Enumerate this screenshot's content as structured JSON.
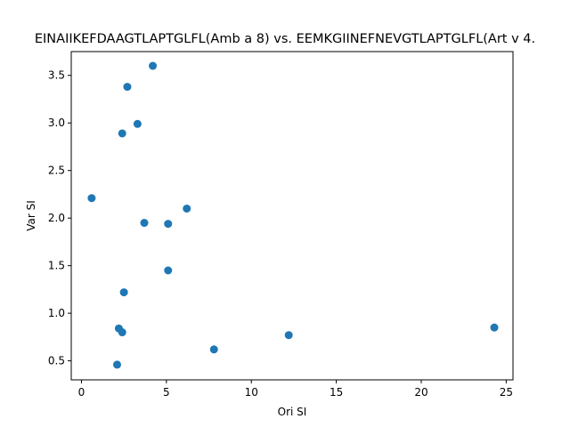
{
  "chart_data": {
    "type": "scatter",
    "title": "EINAIIKEFDAAGTLAPTGLFL(Amb a 8) vs. EEMKGIINEFNEVGTLAPTGLFL(Art v 4.",
    "xlabel": "Ori SI",
    "ylabel": "Var SI",
    "xlim": [
      -0.6,
      25.4
    ],
    "ylim": [
      0.3,
      3.75
    ],
    "xticks": [
      0,
      5,
      10,
      15,
      20,
      25
    ],
    "yticks": [
      0.5,
      1.0,
      1.5,
      2.0,
      2.5,
      3.0,
      3.5
    ],
    "xtick_labels": [
      "0",
      "5",
      "10",
      "15",
      "20",
      "25"
    ],
    "ytick_labels": [
      "0.5",
      "1.0",
      "1.5",
      "2.0",
      "2.5",
      "3.0",
      "3.5"
    ],
    "grid": false,
    "legend": "none",
    "marker_color": "#1f77b4",
    "points": [
      {
        "x": 0.6,
        "y": 2.21
      },
      {
        "x": 2.1,
        "y": 0.46
      },
      {
        "x": 2.2,
        "y": 0.84
      },
      {
        "x": 2.4,
        "y": 0.8
      },
      {
        "x": 2.4,
        "y": 2.89
      },
      {
        "x": 2.5,
        "y": 1.22
      },
      {
        "x": 2.7,
        "y": 3.38
      },
      {
        "x": 3.3,
        "y": 2.99
      },
      {
        "x": 3.7,
        "y": 1.95
      },
      {
        "x": 4.2,
        "y": 3.6
      },
      {
        "x": 5.1,
        "y": 1.94
      },
      {
        "x": 5.1,
        "y": 1.45
      },
      {
        "x": 6.2,
        "y": 2.1
      },
      {
        "x": 7.8,
        "y": 0.62
      },
      {
        "x": 12.2,
        "y": 0.77
      },
      {
        "x": 24.3,
        "y": 0.85
      }
    ]
  }
}
